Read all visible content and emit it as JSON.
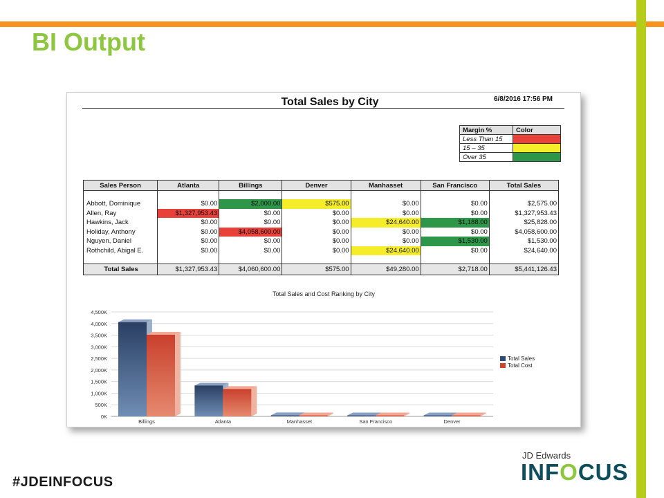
{
  "slide": {
    "title": "BI Output",
    "hashtag": "#JDEINFOCUS",
    "brand_top": "JD Edwards",
    "brand_pre": "INF",
    "brand_o": "O",
    "brand_post": "CUS"
  },
  "report": {
    "title": "Total Sales by City",
    "timestamp": "6/8/2016 17:56 PM",
    "legend": {
      "headers": [
        "Margin %",
        "Color"
      ],
      "rows": [
        {
          "label": "Less Than 15",
          "color": "#e8413a"
        },
        {
          "label": "15 – 35",
          "color": "#f5ec2a"
        },
        {
          "label": "Over 35",
          "color": "#2e9648"
        }
      ]
    },
    "table": {
      "headers": [
        "Sales Person",
        "Atlanta",
        "Billings",
        "Denver",
        "Manhasset",
        "San Francisco",
        "Total Sales"
      ],
      "rows": [
        {
          "name": "Abbott, Dominique",
          "cells": [
            "$0.00",
            "$2,000.00",
            "$575.00",
            "$0.00",
            "$0.00",
            "$2,575.00"
          ]
        },
        {
          "name": "Allen, Ray",
          "cells": [
            "$1,327,953.43",
            "$0.00",
            "$0.00",
            "$0.00",
            "$0.00",
            "$1,327,953.43"
          ]
        },
        {
          "name": "Hawkins, Jack",
          "cells": [
            "$0.00",
            "$0.00",
            "$0.00",
            "$24,640.00",
            "$1,188.00",
            "$25,828.00"
          ]
        },
        {
          "name": "Holiday, Anthony",
          "cells": [
            "$0.00",
            "$4,058,600.00",
            "$0.00",
            "$0.00",
            "$0.00",
            "$4,058,600.00"
          ]
        },
        {
          "name": "Nguyen, Daniel",
          "cells": [
            "$0.00",
            "$0.00",
            "$0.00",
            "$0.00",
            "$1,530.00",
            "$1,530.00"
          ]
        },
        {
          "name": "Rothchild, Abigal E.",
          "cells": [
            "$0.00",
            "$0.00",
            "$0.00",
            "$24,640.00",
            "$0.00",
            "$24,640.00"
          ]
        }
      ],
      "total": {
        "name": "Total Sales",
        "cells": [
          "$1,327,953.43",
          "$4,060,600.00",
          "$575.00",
          "$49,280.00",
          "$2,718.00",
          "$5,441,126.43"
        ]
      }
    }
  },
  "chart_data": {
    "type": "bar",
    "title": "Total Sales and Cost Ranking by City",
    "categories": [
      "Billings",
      "Atlanta",
      "Manhasset",
      "San Francisco",
      "Denver"
    ],
    "series": [
      {
        "name": "Total Sales",
        "color": "#2f4a73",
        "values": [
          4060600,
          1327953.43,
          49280,
          2718,
          575
        ]
      },
      {
        "name": "Total Cost",
        "color": "#d2432d",
        "values": [
          3520000,
          1180000,
          35000,
          2000,
          400
        ]
      }
    ],
    "ylim": [
      0,
      4500000
    ],
    "yticks": [
      0,
      500000,
      1000000,
      1500000,
      2000000,
      2500000,
      3000000,
      3500000,
      4000000,
      4500000
    ],
    "ytick_labels": [
      "0K",
      "500K",
      "1,000K",
      "1,500K",
      "2,000K",
      "2,500K",
      "3,000K",
      "3,500K",
      "4,000K",
      "4,500K"
    ],
    "grid": true,
    "legend_position": "right"
  }
}
